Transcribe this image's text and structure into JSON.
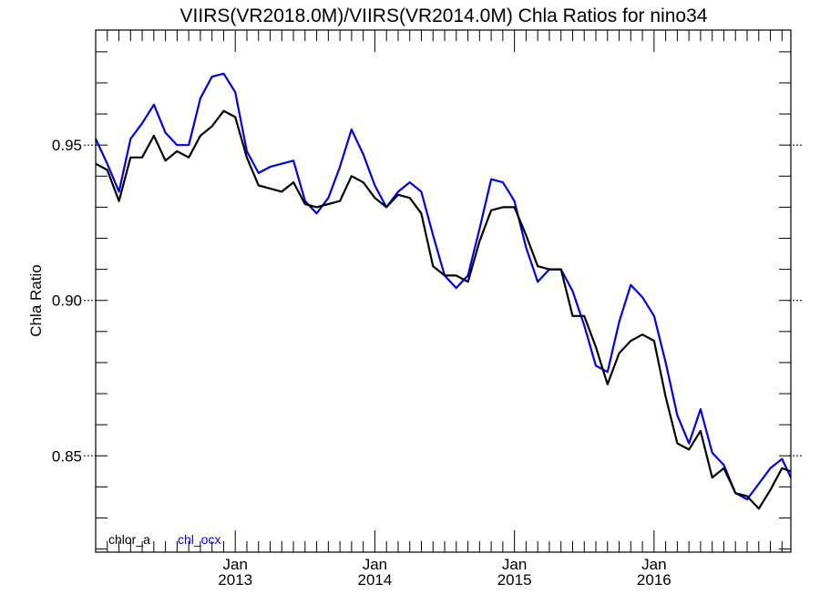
{
  "chart_data": {
    "type": "line",
    "title": "VIIRS(VR2018.0M)/VIIRS(VR2014.0M)  Chla Ratios for nino34",
    "ylabel": "Chla Ratio",
    "xlabel": "",
    "ylim": [
      0.819,
      0.987
    ],
    "xlim": [
      2012.0,
      2016.98
    ],
    "y_ticks": [
      {
        "value": 0.85,
        "label": "0.85"
      },
      {
        "value": 0.9,
        "label": "0.90"
      },
      {
        "value": 0.95,
        "label": "0.95"
      }
    ],
    "x_ticks": [
      {
        "value": 2013.0,
        "label_top": "Jan",
        "label_bottom": "2013"
      },
      {
        "value": 2014.0,
        "label_top": "Jan",
        "label_bottom": "2014"
      },
      {
        "value": 2015.0,
        "label_top": "Jan",
        "label_bottom": "2015"
      },
      {
        "value": 2016.0,
        "label_top": "Jan",
        "label_bottom": "2016"
      }
    ],
    "colors": {
      "chlor_a": "#000000",
      "chl_ocx": "#0000e0"
    },
    "series": [
      {
        "name": "chlor_a",
        "x": [
          2012.0,
          2012.083,
          2012.167,
          2012.25,
          2012.333,
          2012.417,
          2012.5,
          2012.583,
          2012.667,
          2012.75,
          2012.833,
          2012.917,
          2013.0,
          2013.083,
          2013.167,
          2013.25,
          2013.333,
          2013.417,
          2013.5,
          2013.583,
          2013.667,
          2013.75,
          2013.833,
          2013.917,
          2014.0,
          2014.083,
          2014.167,
          2014.25,
          2014.333,
          2014.417,
          2014.5,
          2014.583,
          2014.667,
          2014.75,
          2014.833,
          2014.917,
          2015.0,
          2015.083,
          2015.167,
          2015.25,
          2015.333,
          2015.417,
          2015.5,
          2015.583,
          2015.667,
          2015.75,
          2015.833,
          2015.917,
          2016.0,
          2016.083,
          2016.167,
          2016.25,
          2016.333,
          2016.417,
          2016.5,
          2016.583,
          2016.667,
          2016.75,
          2016.833,
          2016.917,
          2016.98
        ],
        "values": [
          0.944,
          0.942,
          0.932,
          0.946,
          0.946,
          0.953,
          0.945,
          0.948,
          0.946,
          0.953,
          0.956,
          0.961,
          0.959,
          0.946,
          0.937,
          0.936,
          0.935,
          0.938,
          0.931,
          0.93,
          0.931,
          0.932,
          0.94,
          0.938,
          0.933,
          0.93,
          0.934,
          0.933,
          0.928,
          0.911,
          0.908,
          0.908,
          0.906,
          0.919,
          0.929,
          0.93,
          0.93,
          0.921,
          0.911,
          0.91,
          0.91,
          0.895,
          0.895,
          0.885,
          0.873,
          0.883,
          0.887,
          0.889,
          0.887,
          0.869,
          0.854,
          0.852,
          0.858,
          0.843,
          0.846,
          0.838,
          0.837,
          0.833,
          0.839,
          0.846,
          0.845
        ]
      },
      {
        "name": "chl_ocx",
        "x": [
          2012.0,
          2012.083,
          2012.167,
          2012.25,
          2012.333,
          2012.417,
          2012.5,
          2012.583,
          2012.667,
          2012.75,
          2012.833,
          2012.917,
          2013.0,
          2013.083,
          2013.167,
          2013.25,
          2013.333,
          2013.417,
          2013.5,
          2013.583,
          2013.667,
          2013.75,
          2013.833,
          2013.917,
          2014.0,
          2014.083,
          2014.167,
          2014.25,
          2014.333,
          2014.417,
          2014.5,
          2014.583,
          2014.667,
          2014.75,
          2014.833,
          2014.917,
          2015.0,
          2015.083,
          2015.167,
          2015.25,
          2015.333,
          2015.417,
          2015.5,
          2015.583,
          2015.667,
          2015.75,
          2015.833,
          2015.917,
          2016.0,
          2016.083,
          2016.167,
          2016.25,
          2016.333,
          2016.417,
          2016.5,
          2016.583,
          2016.667,
          2016.75,
          2016.833,
          2016.917,
          2016.98
        ],
        "values": [
          0.952,
          0.944,
          0.935,
          0.952,
          0.957,
          0.963,
          0.954,
          0.95,
          0.95,
          0.965,
          0.972,
          0.973,
          0.967,
          0.948,
          0.941,
          0.943,
          0.944,
          0.945,
          0.932,
          0.928,
          0.933,
          0.943,
          0.955,
          0.947,
          0.937,
          0.93,
          0.935,
          0.938,
          0.935,
          0.921,
          0.908,
          0.904,
          0.908,
          0.923,
          0.939,
          0.938,
          0.932,
          0.917,
          0.906,
          0.91,
          0.91,
          0.903,
          0.892,
          0.879,
          0.877,
          0.893,
          0.905,
          0.901,
          0.895,
          0.88,
          0.863,
          0.854,
          0.865,
          0.851,
          0.847,
          0.838,
          0.836,
          0.841,
          0.846,
          0.849,
          0.843
        ]
      }
    ],
    "legend": {
      "placement": "bottom-left",
      "entries": [
        {
          "label": "chlor_a",
          "color": "#000000"
        },
        {
          "label": "chl_ocx",
          "color": "#0000e0"
        }
      ]
    },
    "grid": false
  }
}
